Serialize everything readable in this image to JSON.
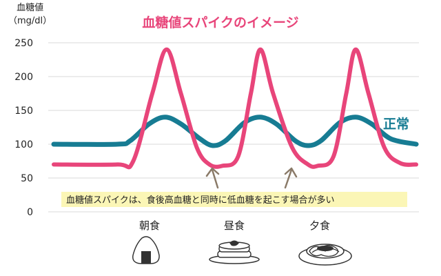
{
  "title": "血糖値スパイクのイメージ",
  "ylabel_line1": "血糖値",
  "ylabel_line2": "（mg/dl）",
  "note": "血糖値スパイクは、食後高血糖と同時に低血糖を起こす場合が多い",
  "meals": [
    "朝食",
    "昼食",
    "夕食"
  ],
  "icons": [
    "onigiri-icon",
    "pancake-icon",
    "spaghetti-icon"
  ],
  "colors": {
    "spike": "#e8457a",
    "normal": "#177c93",
    "note_bg": "#fbf6b6",
    "arrow": "#8a7a68"
  },
  "chart_data": {
    "type": "line",
    "title": "血糖値スパイクのイメージ",
    "ylabel": "血糖値（mg/dl）",
    "ylim": [
      0,
      250
    ],
    "yticks": [
      0,
      50,
      100,
      150,
      200,
      250
    ],
    "grid": true,
    "series": [
      {
        "name": "",
        "color": "#e8457a",
        "points": [
          [
            0,
            70
          ],
          [
            2,
            70
          ],
          [
            2.5,
            75
          ],
          [
            3.1,
            175
          ],
          [
            3.55,
            240
          ],
          [
            4,
            175
          ],
          [
            4.5,
            95
          ],
          [
            4.9,
            70
          ],
          [
            5.3,
            68
          ],
          [
            5.8,
            82
          ],
          [
            6.2,
            175
          ],
          [
            6.5,
            240
          ],
          [
            6.9,
            175
          ],
          [
            7.5,
            95
          ],
          [
            8.0,
            70
          ],
          [
            8.3,
            68
          ],
          [
            8.8,
            82
          ],
          [
            9.2,
            175
          ],
          [
            9.5,
            240
          ],
          [
            9.9,
            175
          ],
          [
            10.4,
            95
          ],
          [
            10.9,
            72
          ],
          [
            11.4,
            70
          ]
        ]
      },
      {
        "name": "正常",
        "color": "#177c93",
        "points": [
          [
            0,
            100
          ],
          [
            2,
            100
          ],
          [
            2.4,
            105
          ],
          [
            3.0,
            130
          ],
          [
            3.5,
            140
          ],
          [
            4.0,
            130
          ],
          [
            4.6,
            108
          ],
          [
            5.0,
            98
          ],
          [
            5.4,
            105
          ],
          [
            6.0,
            132
          ],
          [
            6.5,
            140
          ],
          [
            7.0,
            130
          ],
          [
            7.6,
            105
          ],
          [
            8.0,
            98
          ],
          [
            8.4,
            105
          ],
          [
            9.0,
            132
          ],
          [
            9.5,
            140
          ],
          [
            10.0,
            130
          ],
          [
            10.6,
            108
          ],
          [
            11.4,
            100
          ]
        ]
      }
    ],
    "annotations": [
      {
        "text": "血糖値スパイクは、食後高血糖と同時に低血糖を起こす場合が多い",
        "arrows_to_x": [
          5.3,
          8.3
        ]
      }
    ]
  }
}
